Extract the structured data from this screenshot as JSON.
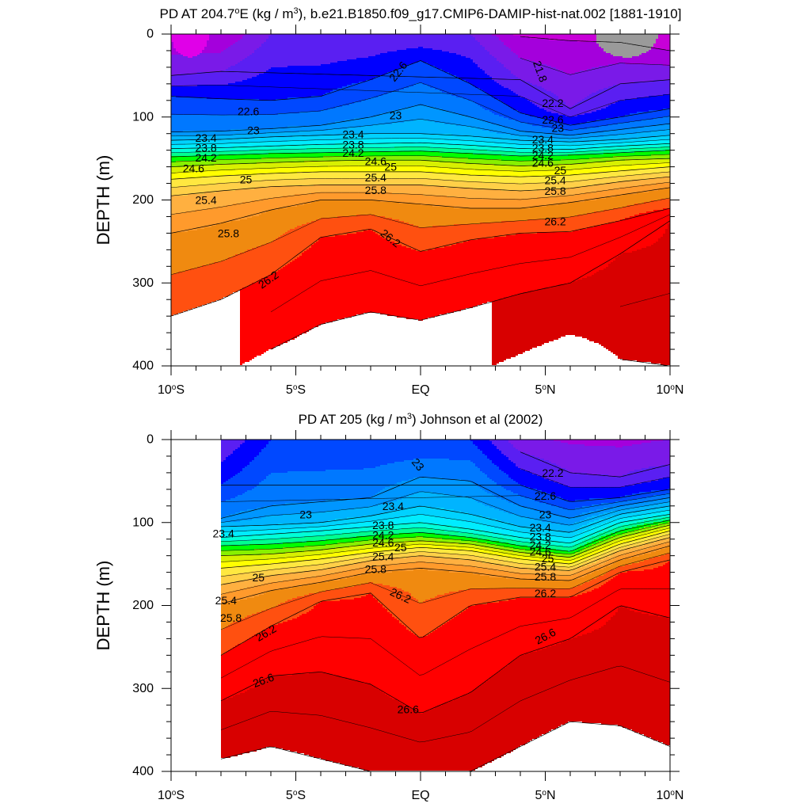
{
  "chart_data": [
    {
      "type": "heatmap",
      "title": "PD AT 204.7°E (kg / m³), b.e21.B1850.f09_g17.CMIP6-DAMIP-hist-nat.002 [1881-1910]",
      "title_parts": {
        "pre": "PD AT 204.7",
        "sup1": "o",
        "mid": "E (kg / m",
        "sup2": "3",
        "post": "), b.e21.B1850.f09_g17.CMIP6-DAMIP-hist-nat.002 [1881-1910]"
      },
      "xlabel": "",
      "ylabel": "DEPTH (m)",
      "xlim": [
        -10,
        10
      ],
      "ylim": [
        0,
        400
      ],
      "y_inverted": true,
      "x_ticks": [
        {
          "value": -10,
          "num": "10",
          "sup": "o",
          "hemi": "S"
        },
        {
          "value": -5,
          "num": "5",
          "sup": "o",
          "hemi": "S"
        },
        {
          "value": 0,
          "num": "EQ",
          "sup": "",
          "hemi": ""
        },
        {
          "value": 5,
          "num": "5",
          "sup": "o",
          "hemi": "N"
        },
        {
          "value": 10,
          "num": "10",
          "sup": "o",
          "hemi": "N"
        }
      ],
      "y_ticks": [
        "0",
        "100",
        "200",
        "300",
        "400"
      ],
      "data_x_range": [
        -10,
        10
      ],
      "contour_interval": 0.2,
      "isopycnal_depths": {
        "x": [
          -10,
          -8,
          -6,
          -4,
          -2,
          0,
          2,
          4,
          6,
          8,
          10
        ],
        "levels": [
          {
            "sigma": 21.8,
            "depth": [
              null,
              null,
              null,
              null,
              null,
              null,
              null,
              3,
              8,
              10,
              20
            ]
          },
          {
            "sigma": 22.2,
            "depth": [
              50,
              45,
              null,
              null,
              null,
              null,
              null,
              55,
              90,
              60,
              55
            ]
          },
          {
            "sigma": 22.6,
            "depth": [
              75,
              78,
              80,
              75,
              55,
              32,
              60,
              95,
              110,
              100,
              90
            ]
          },
          {
            "sigma": 23.0,
            "depth": [
              118,
              117,
              114,
              110,
              100,
              85,
              100,
              117,
              122,
              115,
              108
            ]
          },
          {
            "sigma": 23.4,
            "depth": [
              128,
              127,
              124,
              122,
              120,
              120,
              123,
              128,
              130,
              127,
              122
            ]
          },
          {
            "sigma": 23.8,
            "depth": [
              138,
              137,
              135,
              133,
              132,
              131,
              134,
              138,
              139,
              135,
              132
            ]
          },
          {
            "sigma": 24.2,
            "depth": [
              148,
              146,
              144,
              143,
              142,
              141,
              144,
              147,
              146,
              143,
              140
            ]
          },
          {
            "sigma": 24.6,
            "depth": [
              160,
              157,
              155,
              153,
              152,
              152,
              156,
              159,
              157,
              152,
              150
            ]
          },
          {
            "sigma": 25.0,
            "depth": [
              175,
              171,
              168,
              166,
              166,
              166,
              170,
              172,
              170,
              165,
              160
            ]
          },
          {
            "sigma": 25.4,
            "depth": [
              195,
              189,
              184,
              182,
              182,
              182,
              186,
              189,
              186,
              178,
              172
            ]
          },
          {
            "sigma": 25.8,
            "depth": [
              240,
              228,
              212,
              200,
              200,
              205,
              210,
              210,
              203,
              194,
              185
            ]
          },
          {
            "sigma": 26.2,
            "depth": [
              340,
              320,
              290,
              245,
              235,
              262,
              248,
              240,
              238,
              225,
              210
            ]
          },
          {
            "sigma": 26.6,
            "depth": [
              null,
              null,
              380,
              350,
              335,
              345,
              330,
              313,
              300,
              265,
              225
            ]
          },
          {
            "sigma": 27.0,
            "depth": [
              null,
              null,
              null,
              null,
              null,
              null,
              null,
              null,
              null,
              392,
              400
            ]
          }
        ]
      },
      "surface_features": [
        {
          "region": "west",
          "x_range": [
            -10,
            -8.5
          ],
          "sigma": 21.4
        },
        {
          "region": "east",
          "x_range": [
            7,
            9.5
          ],
          "sigma": 20.6
        }
      ],
      "contour_labels": [
        {
          "text": "22.6",
          "x": -0.9,
          "y": 45,
          "rotate": -52
        },
        {
          "text": "21.8",
          "x": 4.8,
          "y": 45,
          "rotate": 70
        },
        {
          "text": "22.6",
          "x": -6.9,
          "y": 93
        },
        {
          "text": "23",
          "x": -6.7,
          "y": 116
        },
        {
          "text": "23",
          "x": -1.0,
          "y": 98
        },
        {
          "text": "22.2",
          "x": 5.3,
          "y": 83
        },
        {
          "text": "22.6",
          "x": 5.3,
          "y": 103
        },
        {
          "text": "23",
          "x": 5.5,
          "y": 113
        },
        {
          "text": "23.4",
          "x": -8.6,
          "y": 125
        },
        {
          "text": "23.8",
          "x": -8.6,
          "y": 137
        },
        {
          "text": "24.2",
          "x": -8.6,
          "y": 149
        },
        {
          "text": "24.6",
          "x": -9.1,
          "y": 162
        },
        {
          "text": "25",
          "x": -7.0,
          "y": 175
        },
        {
          "text": "25.4",
          "x": -8.6,
          "y": 200
        },
        {
          "text": "25.8",
          "x": -7.7,
          "y": 240
        },
        {
          "text": "26.2",
          "x": -6.1,
          "y": 296,
          "rotate": -35
        },
        {
          "text": "23.4",
          "x": -2.7,
          "y": 121
        },
        {
          "text": "23.8",
          "x": -2.7,
          "y": 133
        },
        {
          "text": "24.2",
          "x": -2.7,
          "y": 143
        },
        {
          "text": "24.6",
          "x": -1.8,
          "y": 153
        },
        {
          "text": "25",
          "x": -1.2,
          "y": 160
        },
        {
          "text": "25.4",
          "x": -1.8,
          "y": 173
        },
        {
          "text": "25.8",
          "x": -1.8,
          "y": 188
        },
        {
          "text": "26.2",
          "x": -1.2,
          "y": 246,
          "rotate": 38
        },
        {
          "text": "23.4",
          "x": 4.9,
          "y": 127
        },
        {
          "text": "23.8",
          "x": 4.9,
          "y": 137
        },
        {
          "text": "24.2",
          "x": 4.9,
          "y": 146
        },
        {
          "text": "24.6",
          "x": 4.9,
          "y": 155
        },
        {
          "text": "25",
          "x": 5.6,
          "y": 164
        },
        {
          "text": "25.4",
          "x": 5.4,
          "y": 176
        },
        {
          "text": "25.8",
          "x": 5.4,
          "y": 189
        },
        {
          "text": "26.2",
          "x": 5.4,
          "y": 226
        }
      ]
    },
    {
      "type": "heatmap",
      "title": "PD AT 205 (kg / m³) Johnson et al (2002)",
      "title_parts": {
        "pre": "PD AT 205 (kg / m",
        "sup1": "3",
        "mid": "",
        "sup2": "",
        "post": ") Johnson et al (2002)"
      },
      "xlabel": "",
      "ylabel": "DEPTH (m)",
      "xlim": [
        -10,
        10
      ],
      "ylim": [
        0,
        400
      ],
      "y_inverted": true,
      "x_ticks": [
        {
          "value": -10,
          "num": "10",
          "sup": "o",
          "hemi": "S"
        },
        {
          "value": -5,
          "num": "5",
          "sup": "o",
          "hemi": "S"
        },
        {
          "value": 0,
          "num": "EQ",
          "sup": "",
          "hemi": ""
        },
        {
          "value": 5,
          "num": "5",
          "sup": "o",
          "hemi": "N"
        },
        {
          "value": 10,
          "num": "10",
          "sup": "o",
          "hemi": "N"
        }
      ],
      "y_ticks": [
        "0",
        "100",
        "200",
        "300",
        "400"
      ],
      "data_x_range": [
        -8,
        10
      ],
      "contour_interval": 0.2,
      "isopycnal_depths": {
        "x": [
          -8,
          -6,
          -4,
          -2,
          0,
          2,
          4,
          6,
          8,
          10
        ],
        "levels": [
          {
            "sigma": 22.2,
            "depth": [
              null,
              null,
              null,
              null,
              null,
              null,
              15,
              40,
              45,
              30
            ]
          },
          {
            "sigma": 22.6,
            "depth": [
              55,
              null,
              null,
              null,
              null,
              null,
              55,
              75,
              70,
              60
            ]
          },
          {
            "sigma": 23.0,
            "depth": [
              95,
              80,
              75,
              70,
              45,
              50,
              80,
              95,
              80,
              70
            ]
          },
          {
            "sigma": 23.4,
            "depth": [
              105,
              103,
              100,
              92,
              80,
              90,
              105,
              112,
              90,
              80
            ]
          },
          {
            "sigma": 23.8,
            "depth": [
              118,
              114,
              110,
              105,
              100,
              108,
              118,
              125,
              100,
              90
            ]
          },
          {
            "sigma": 24.2,
            "depth": [
              128,
              126,
              122,
              116,
              112,
              118,
              128,
              135,
              110,
              97
            ]
          },
          {
            "sigma": 24.6,
            "depth": [
              140,
              138,
              133,
              126,
              122,
              126,
              136,
              142,
              118,
              103
            ]
          },
          {
            "sigma": 25.0,
            "depth": [
              155,
              150,
              144,
              136,
              130,
              134,
              144,
              150,
              126,
              110
            ]
          },
          {
            "sigma": 25.4,
            "depth": [
              175,
              164,
              157,
              146,
              140,
              145,
              155,
              158,
              134,
              118
            ]
          },
          {
            "sigma": 25.8,
            "depth": [
              198,
              182,
              172,
              160,
              155,
              160,
              168,
              170,
              145,
              128
            ]
          },
          {
            "sigma": 26.2,
            "depth": [
              260,
              225,
              195,
              185,
              240,
              200,
              190,
              190,
              160,
              145
            ]
          },
          {
            "sigma": 26.6,
            "depth": [
              315,
              285,
              280,
              295,
              330,
              305,
              260,
              240,
              200,
              215
            ]
          },
          {
            "sigma": 27.0,
            "depth": [
              385,
              370,
              385,
              400,
              400,
              400,
              370,
              340,
              345,
              370
            ]
          }
        ]
      },
      "contour_labels": [
        {
          "text": "23",
          "x": -0.1,
          "y": 30,
          "rotate": 50
        },
        {
          "text": "22.2",
          "x": 5.3,
          "y": 40
        },
        {
          "text": "22.6",
          "x": 5.0,
          "y": 68
        },
        {
          "text": "23",
          "x": -4.6,
          "y": 90
        },
        {
          "text": "23",
          "x": 5.0,
          "y": 90
        },
        {
          "text": "23.4",
          "x": -1.1,
          "y": 80
        },
        {
          "text": "23.4",
          "x": -7.9,
          "y": 113
        },
        {
          "text": "23.8",
          "x": -1.5,
          "y": 103
        },
        {
          "text": "24.2",
          "x": -1.5,
          "y": 115
        },
        {
          "text": "24.6",
          "x": -1.5,
          "y": 124
        },
        {
          "text": "25",
          "x": -0.8,
          "y": 130
        },
        {
          "text": "25.4",
          "x": -1.5,
          "y": 141
        },
        {
          "text": "25.8",
          "x": -1.8,
          "y": 156
        },
        {
          "text": "26.2",
          "x": -0.8,
          "y": 188,
          "rotate": 25
        },
        {
          "text": "25",
          "x": -6.5,
          "y": 166
        },
        {
          "text": "25.4",
          "x": -7.8,
          "y": 194
        },
        {
          "text": "25.8",
          "x": -7.6,
          "y": 215
        },
        {
          "text": "26.2",
          "x": -6.2,
          "y": 233,
          "rotate": -30
        },
        {
          "text": "23.4",
          "x": 4.8,
          "y": 106
        },
        {
          "text": "23.8",
          "x": 4.8,
          "y": 117
        },
        {
          "text": "24.2",
          "x": 4.8,
          "y": 127
        },
        {
          "text": "24.6",
          "x": 4.8,
          "y": 135
        },
        {
          "text": "25",
          "x": 5.1,
          "y": 143
        },
        {
          "text": "25.4",
          "x": 5.0,
          "y": 153
        },
        {
          "text": "25.8",
          "x": 5.0,
          "y": 165
        },
        {
          "text": "26.2",
          "x": 5.0,
          "y": 185
        },
        {
          "text": "26.6",
          "x": -6.3,
          "y": 290,
          "rotate": -20
        },
        {
          "text": "26.6",
          "x": -0.5,
          "y": 325
        },
        {
          "text": "26.6",
          "x": 5.0,
          "y": 237,
          "rotate": -28
        }
      ]
    }
  ],
  "colors": {
    "bands": [
      {
        "max": 20.6,
        "color": "#6b6b6b"
      },
      {
        "max": 20.8,
        "color": "#9a9a9a"
      },
      {
        "max": 21.0,
        "color": "#bdbdbd"
      },
      {
        "max": 21.2,
        "color": "#ff33ff"
      },
      {
        "max": 21.4,
        "color": "#ff00ff"
      },
      {
        "max": 21.6,
        "color": "#e000e8"
      },
      {
        "max": 21.8,
        "color": "#c800d8"
      },
      {
        "max": 22.0,
        "color": "#a400dc"
      },
      {
        "max": 22.2,
        "color": "#7a1ae8"
      },
      {
        "max": 22.4,
        "color": "#5a1ff2"
      },
      {
        "max": 22.6,
        "color": "#0000ff"
      },
      {
        "max": 22.8,
        "color": "#0048ff"
      },
      {
        "max": 23.0,
        "color": "#0078ff"
      },
      {
        "max": 23.2,
        "color": "#0096ff"
      },
      {
        "max": 23.4,
        "color": "#00b4ff"
      },
      {
        "max": 23.6,
        "color": "#00d2ff"
      },
      {
        "max": 23.8,
        "color": "#00ecff"
      },
      {
        "max": 24.0,
        "color": "#00ffd8"
      },
      {
        "max": 24.2,
        "color": "#00ff90"
      },
      {
        "max": 24.4,
        "color": "#00ff00"
      },
      {
        "max": 24.6,
        "color": "#88f000"
      },
      {
        "max": 24.8,
        "color": "#d8f000"
      },
      {
        "max": 25.0,
        "color": "#ffff00"
      },
      {
        "max": 25.2,
        "color": "#ffe840"
      },
      {
        "max": 25.4,
        "color": "#ffd048"
      },
      {
        "max": 25.6,
        "color": "#ffb040"
      },
      {
        "max": 25.8,
        "color": "#ff9a2c"
      },
      {
        "max": 26.0,
        "color": "#f08a10"
      },
      {
        "max": 26.2,
        "color": "#ff5010"
      },
      {
        "max": 26.6,
        "color": "#ff0000"
      },
      {
        "max": 27.0,
        "color": "#d80000"
      },
      {
        "max": 99,
        "color": "#c00000"
      }
    ],
    "contour_line": "#000000"
  }
}
